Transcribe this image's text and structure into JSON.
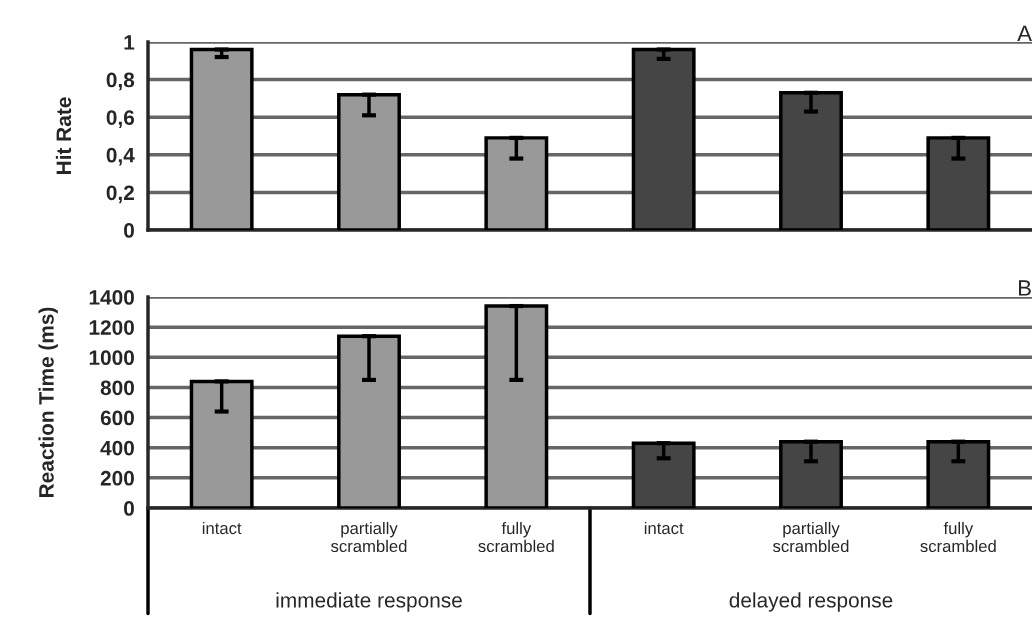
{
  "chart_data": [
    {
      "type": "bar",
      "title": "A",
      "ylabel": "Hit Rate",
      "categories": [
        null,
        null,
        null,
        null,
        null,
        null
      ],
      "values": [
        0.96,
        0.72,
        0.49,
        0.96,
        0.73,
        0.49
      ],
      "errors": [
        [
          0.92,
          0.96
        ],
        [
          0.61,
          0.72
        ],
        [
          0.38,
          0.49
        ],
        [
          0.91,
          0.96
        ],
        [
          0.63,
          0.73
        ],
        [
          0.38,
          0.49
        ]
      ],
      "colors": [
        "#999999",
        "#999999",
        "#999999",
        "#454545",
        "#454545",
        "#454545"
      ],
      "ylim": [
        0,
        1
      ],
      "yticks": [
        0,
        {
          "value": 0.2,
          "label": "0,2"
        },
        {
          "value": 0.4,
          "label": "0,4"
        },
        {
          "value": 0.6,
          "label": "0,6"
        },
        {
          "value": 0.8,
          "label": "0,8"
        },
        1
      ],
      "grid": "y",
      "tick_labels": "y"
    },
    {
      "type": "bar",
      "title": "B",
      "ylabel": "Reaction Time (ms)",
      "categories": [
        "intact",
        "partially\nscrambled",
        "fully\nscrambled",
        "intact",
        "partially\nscrambled",
        "fully\nscrambled"
      ],
      "values": [
        840,
        1140,
        1340,
        430,
        440,
        440
      ],
      "errors": [
        [
          640,
          840
        ],
        [
          850,
          1140
        ],
        [
          850,
          1340
        ],
        [
          330,
          430
        ],
        [
          310,
          440
        ],
        [
          310,
          440
        ]
      ],
      "colors": [
        "#999999",
        "#999999",
        "#999999",
        "#454545",
        "#454545",
        "#454545"
      ],
      "ylim": [
        0,
        1400
      ],
      "yticks": [
        0,
        200,
        400,
        600,
        800,
        1000,
        1200,
        1400
      ],
      "grid": "y",
      "annotations": [
        "immediate response",
        "delayed response"
      ]
    }
  ]
}
